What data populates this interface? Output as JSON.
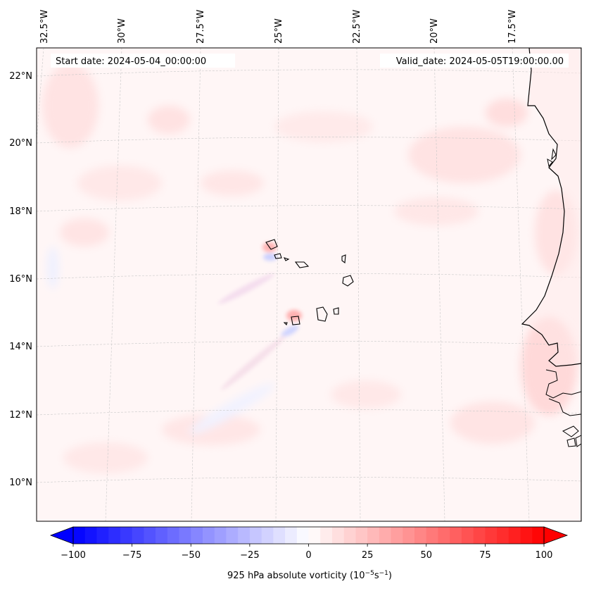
{
  "annotations": {
    "start_date": "Start date: 2024-05-04_00:00:00",
    "valid_date": "Valid_date: 2024-05-05T19:00:00.00"
  },
  "longitude_labels": [
    "32.5°W",
    "30°W",
    "27.5°W",
    "25°W",
    "22.5°W",
    "20°W",
    "17.5°W"
  ],
  "latitude_labels": [
    "22°N",
    "20°N",
    "18°N",
    "16°N",
    "14°N",
    "12°N",
    "10°N"
  ],
  "colorbar": {
    "label": "925 hPa absolute vorticity (10",
    "label_exp1": "−5",
    "label_mid": "s",
    "label_exp2": "−1",
    "label_end": ")",
    "ticks": [
      "−100",
      "−75",
      "−50",
      "−25",
      "0",
      "25",
      "50",
      "75",
      "100"
    ],
    "min": -100,
    "max": 100,
    "step": 5,
    "negative_color": "#0000ff",
    "positive_color": "#ff0000"
  },
  "colors": {
    "background_field": "#fff6f6",
    "coastline": "#000000",
    "gridline": "#c8c8c8"
  }
}
